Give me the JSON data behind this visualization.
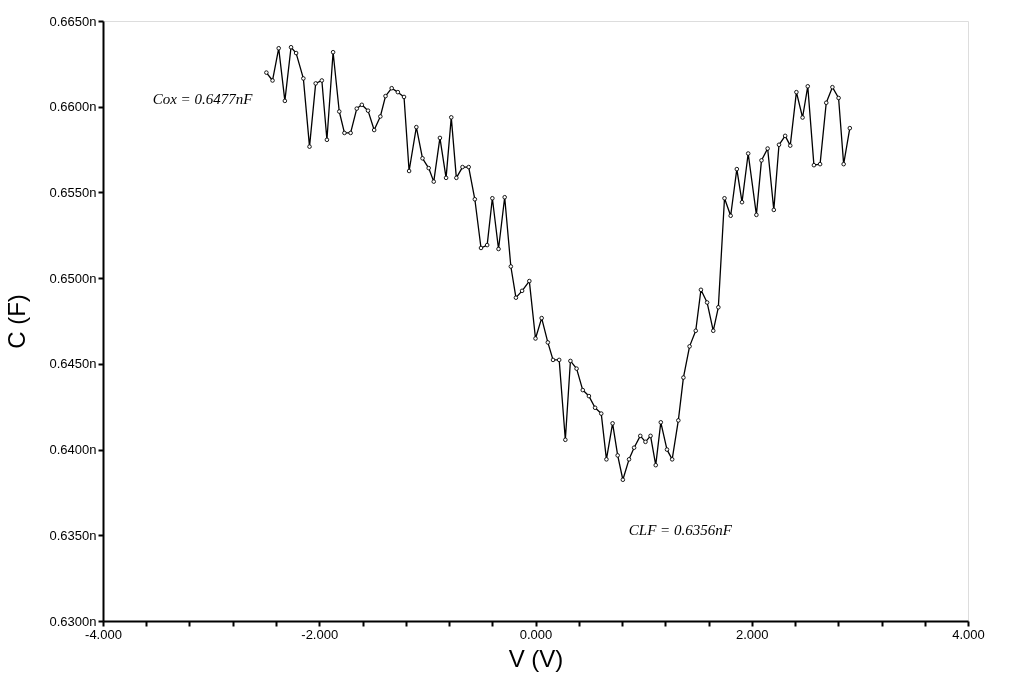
{
  "chart_data": {
    "type": "line",
    "xlabel": "V (V)",
    "ylabel": "C (F)",
    "x": [
      -2.489,
      -2.432,
      -2.375,
      -2.318,
      -2.261,
      -2.214,
      -2.147,
      -2.09,
      -2.033,
      -1.976,
      -1.929,
      -1.872,
      -1.815,
      -1.767,
      -1.71,
      -1.653,
      -1.606,
      -1.549,
      -1.492,
      -1.435,
      -1.387,
      -1.33,
      -1.273,
      -1.216,
      -1.169,
      -1.102,
      -1.045,
      -0.988,
      -0.941,
      -0.884,
      -0.827,
      -0.779,
      -0.732,
      -0.675,
      -0.618,
      -0.561,
      -0.504,
      -0.447,
      -0.399,
      -0.342,
      -0.285,
      -0.228,
      -0.181,
      -0.124,
      -0.057,
      0.0,
      0.057,
      0.114,
      0.162,
      0.219,
      0.276,
      0.323,
      0.38,
      0.437,
      0.494,
      0.551,
      0.608,
      0.656,
      0.713,
      0.76,
      0.808,
      0.865,
      0.912,
      0.969,
      1.017,
      1.064,
      1.112,
      1.159,
      1.216,
      1.264,
      1.321,
      1.368,
      1.425,
      1.482,
      1.53,
      1.587,
      1.644,
      1.691,
      1.748,
      1.805,
      1.862,
      1.91,
      1.967,
      2.043,
      2.09,
      2.147,
      2.204,
      2.252,
      2.309,
      2.356,
      2.413,
      2.47,
      2.518,
      2.575,
      2.632,
      2.689,
      2.746,
      2.803,
      2.85,
      2.907
    ],
    "series": [
      {
        "color": "#000000",
        "values": [
          0.66199,
          0.66153,
          0.66341,
          0.66034,
          0.66347,
          0.66313,
          0.66165,
          0.65767,
          0.66136,
          0.66153,
          0.65807,
          0.66318,
          0.65972,
          0.65847,
          0.65847,
          0.65989,
          0.66011,
          0.65977,
          0.65864,
          0.65943,
          0.66062,
          0.66108,
          0.66085,
          0.66057,
          0.65625,
          0.65881,
          0.65699,
          0.65642,
          0.65563,
          0.65818,
          0.65585,
          0.65938,
          0.65585,
          0.65648,
          0.65648,
          0.6546,
          0.65176,
          0.65193,
          0.65466,
          0.6517,
          0.65472,
          0.65068,
          0.64886,
          0.64926,
          0.64983,
          0.64648,
          0.64767,
          0.64625,
          0.64523,
          0.64523,
          0.64057,
          0.64517,
          0.64472,
          0.64347,
          0.64312,
          0.64244,
          0.6421,
          0.63943,
          0.64153,
          0.63966,
          0.63824,
          0.63943,
          0.64011,
          0.6408,
          0.64045,
          0.6408,
          0.63909,
          0.64159,
          0.64,
          0.63943,
          0.6417,
          0.6442,
          0.64602,
          0.64693,
          0.64932,
          0.64858,
          0.64693,
          0.6483,
          0.65466,
          0.65364,
          0.65636,
          0.65443,
          0.65727,
          0.65369,
          0.65687,
          0.65756,
          0.65398,
          0.65778,
          0.6583,
          0.65773,
          0.66085,
          0.65937,
          0.66119,
          0.65659,
          0.65665,
          0.66023,
          0.66114,
          0.66051,
          0.65665,
          0.65875
        ]
      }
    ],
    "xlim": [
      -4,
      4
    ],
    "xticks": [
      {
        "value": -4,
        "label": "-4.000"
      },
      {
        "value": -3.6,
        "label": null
      },
      {
        "value": -3.2,
        "label": null
      },
      {
        "value": -2.8,
        "label": null
      },
      {
        "value": -2.4,
        "label": null
      },
      {
        "value": -2,
        "label": "-2.000"
      },
      {
        "value": -1.6,
        "label": null
      },
      {
        "value": -1.2,
        "label": null
      },
      {
        "value": -0.8,
        "label": null
      },
      {
        "value": -0.4,
        "label": null
      },
      {
        "value": 0,
        "label": "0.000"
      },
      {
        "value": 0.4,
        "label": null
      },
      {
        "value": 0.8,
        "label": null
      },
      {
        "value": 1.2,
        "label": null
      },
      {
        "value": 1.6,
        "label": null
      },
      {
        "value": 2,
        "label": "2.000"
      },
      {
        "value": 2.4,
        "label": null
      },
      {
        "value": 2.8,
        "label": null
      },
      {
        "value": 3.2,
        "label": null
      },
      {
        "value": 3.6,
        "label": null
      },
      {
        "value": 4,
        "label": "4.000"
      }
    ],
    "ylim": [
      0.63,
      0.665
    ],
    "yticks": [
      {
        "value": 0.63,
        "label": "0.6300n"
      },
      {
        "value": 0.635,
        "label": "0.6350n"
      },
      {
        "value": 0.64,
        "label": "0.6400n"
      },
      {
        "value": 0.645,
        "label": "0.6450n"
      },
      {
        "value": 0.65,
        "label": "0.6500n"
      },
      {
        "value": 0.655,
        "label": "0.6550n"
      },
      {
        "value": 0.66,
        "label": "0.6600n"
      },
      {
        "value": 0.665,
        "label": "0.6650n"
      }
    ],
    "annotations": [
      {
        "text": "Cox = 0.6477nF",
        "x": -2.489,
        "y": 0.66199
      },
      {
        "text": "CLF = 0.6356nF",
        "x": 0.808,
        "y": 0.63824
      }
    ],
    "grid": false,
    "marker": "circle",
    "line_style": "solid"
  }
}
